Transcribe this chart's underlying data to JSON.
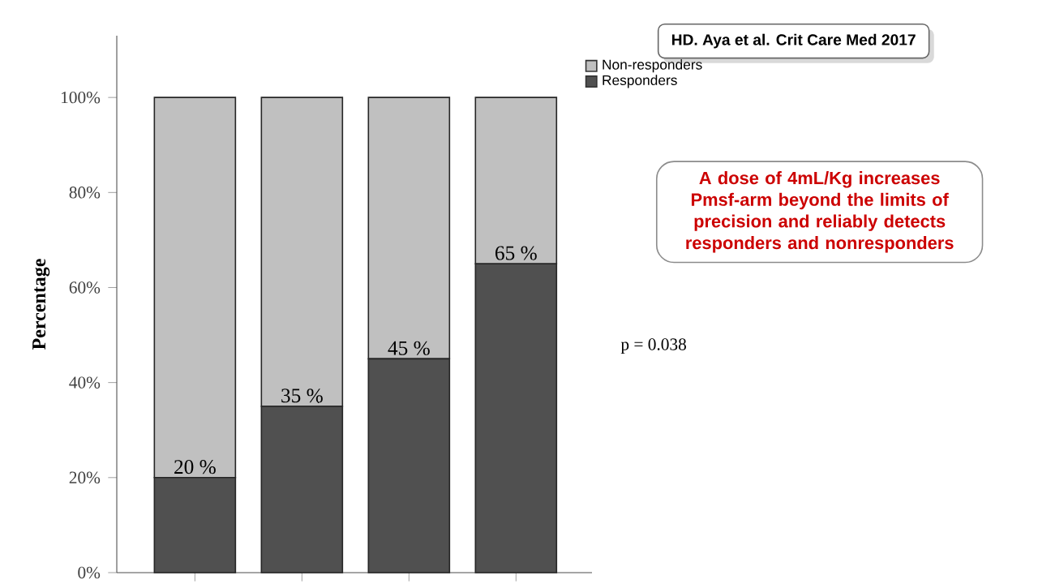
{
  "chart_data": {
    "type": "bar",
    "stacked": true,
    "ylabel": "Percentage",
    "categories": [
      null,
      null,
      null,
      null
    ],
    "series": [
      {
        "name": "Responders",
        "color": "#505050",
        "values": [
          20,
          35,
          45,
          65
        ],
        "value_labels": [
          "20 %",
          "35 %",
          "45 %",
          "65 %"
        ]
      },
      {
        "name": "Non-responders",
        "color": "#c0c0c0",
        "values": [
          80,
          65,
          55,
          35
        ]
      }
    ],
    "ylim": [
      0,
      113
    ],
    "yticks": [
      {
        "value": 0,
        "label": "0%"
      },
      {
        "value": 20,
        "label": "20%"
      },
      {
        "value": 40,
        "label": "40%"
      },
      {
        "value": 60,
        "label": "60%"
      },
      {
        "value": 80,
        "label": "80%"
      },
      {
        "value": 100,
        "label": "100%"
      }
    ],
    "legend": "top right",
    "grid": false,
    "annotations": [
      "HD. Aya et al. Crit Care Med 2017",
      "A dose of 4mL/Kg increases Pmsf-arm beyond the limits of precision and reliably detects responders and nonresponders",
      "p = 0.038"
    ]
  }
}
